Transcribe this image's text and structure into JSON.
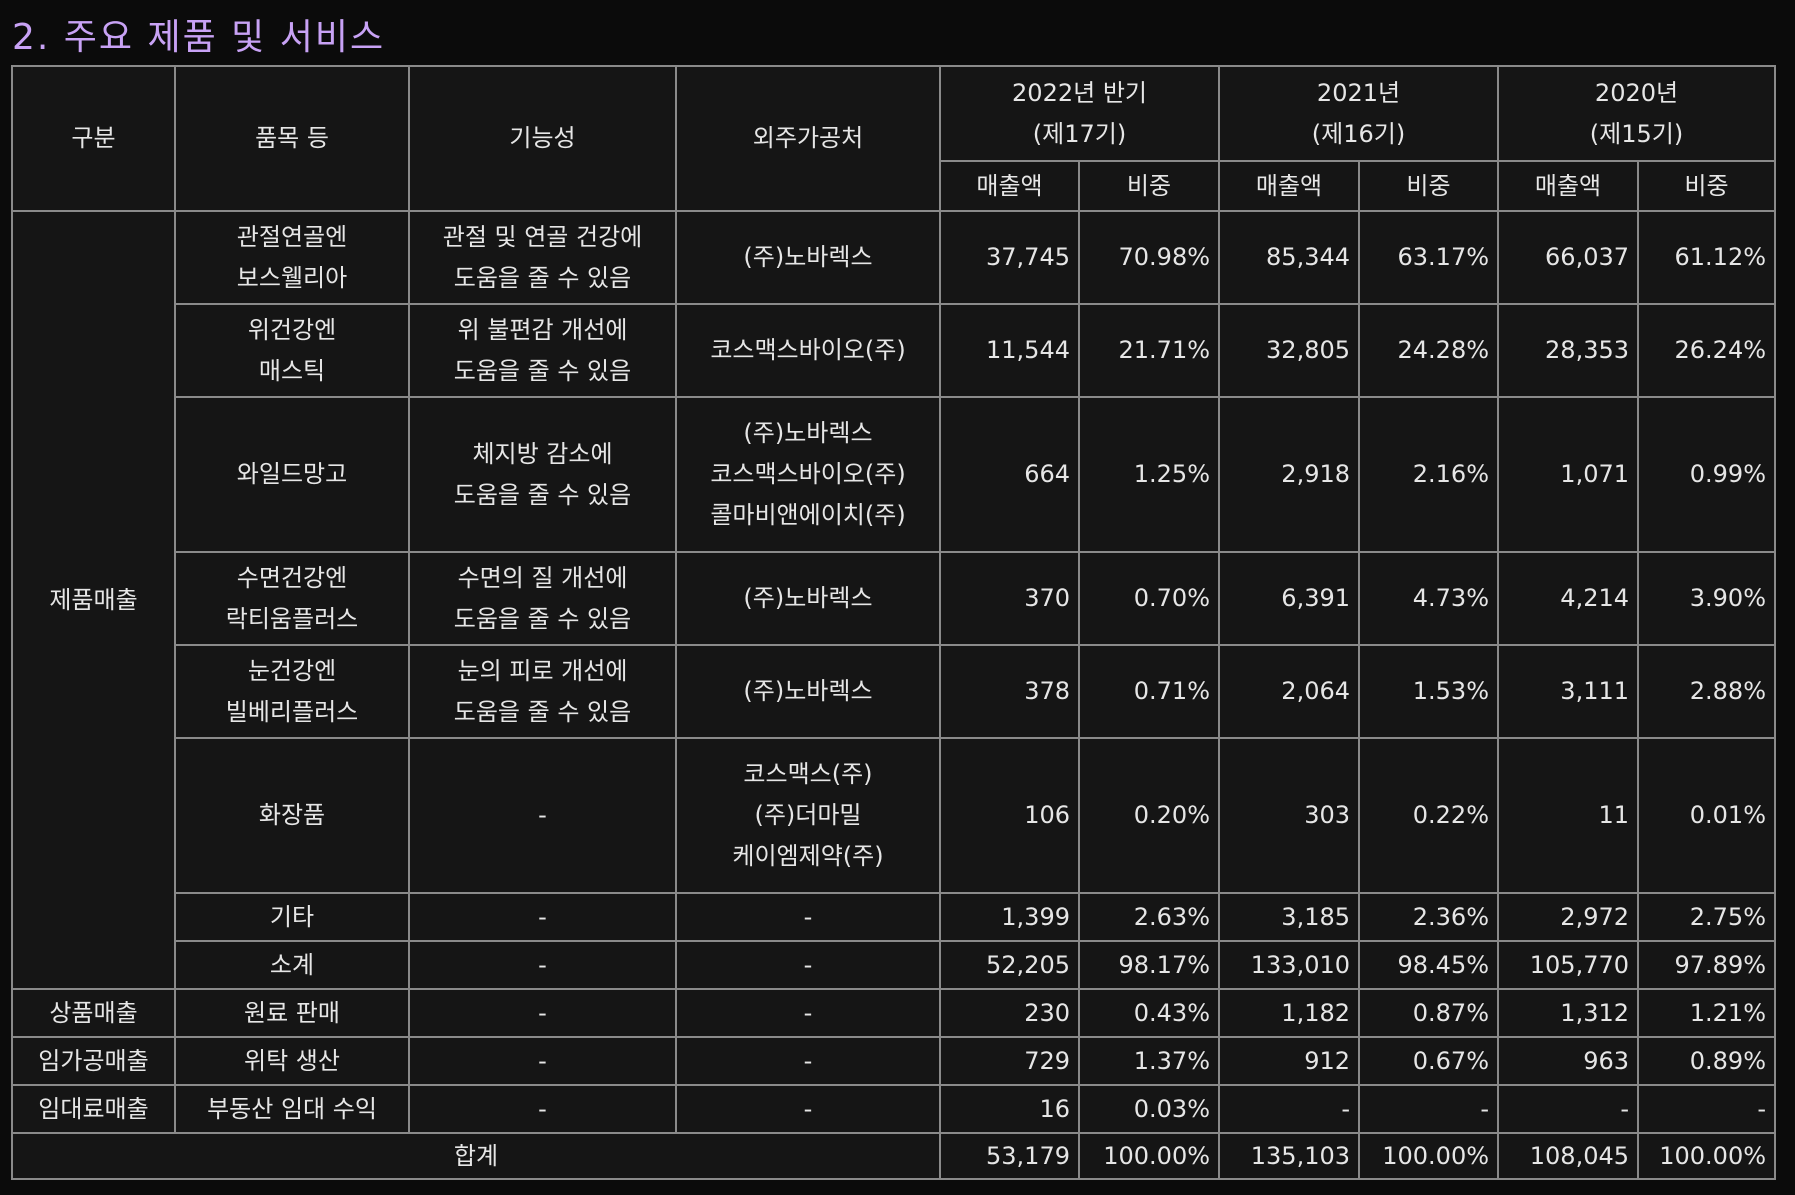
{
  "title": "2. 주요 제품 및 서비스",
  "table": {
    "header": {
      "group": "구분",
      "item": "품목 등",
      "function": "기능성",
      "vendor": "외주가공처",
      "periods": [
        {
          "label": [
            "2022년 반기",
            "(제17기)"
          ],
          "columns": [
            "매출액",
            "비중"
          ]
        },
        {
          "label": [
            "2021년",
            "(제16기)"
          ],
          "columns": [
            "매출액",
            "비중"
          ]
        },
        {
          "label": [
            "2020년",
            "(제15기)"
          ],
          "columns": [
            "매출액",
            "비중"
          ]
        }
      ]
    },
    "rows": [
      {
        "group": "제품매출",
        "item": [
          "관절연골엔",
          "보스웰리아"
        ],
        "function": [
          "관절 및 연골 건강에",
          "도움을 줄 수 있음"
        ],
        "vendor": [
          "(주)노바렉스"
        ],
        "values": [
          "37,745",
          "70.98%",
          "85,344",
          "63.17%",
          "66,037",
          "61.12%"
        ]
      },
      {
        "item": [
          "위건강엔",
          "매스틱"
        ],
        "function": [
          "위 불편감 개선에",
          "도움을 줄 수 있음"
        ],
        "vendor": [
          "코스맥스바이오(주)"
        ],
        "values": [
          "11,544",
          "21.71%",
          "32,805",
          "24.28%",
          "28,353",
          "26.24%"
        ]
      },
      {
        "item": [
          "와일드망고"
        ],
        "function": [
          "체지방 감소에",
          "도움을 줄 수 있음"
        ],
        "vendor": [
          "(주)노바렉스",
          "코스맥스바이오(주)",
          "콜마비앤에이치(주)"
        ],
        "values": [
          "664",
          "1.25%",
          "2,918",
          "2.16%",
          "1,071",
          "0.99%"
        ]
      },
      {
        "item": [
          "수면건강엔",
          "락티움플러스"
        ],
        "function": [
          "수면의 질 개선에",
          "도움을 줄 수 있음"
        ],
        "vendor": [
          "(주)노바렉스"
        ],
        "values": [
          "370",
          "0.70%",
          "6,391",
          "4.73%",
          "4,214",
          "3.90%"
        ]
      },
      {
        "item": [
          "눈건강엔",
          "빌베리플러스"
        ],
        "function": [
          "눈의 피로 개선에",
          "도움을 줄 수 있음"
        ],
        "vendor": [
          "(주)노바렉스"
        ],
        "values": [
          "378",
          "0.71%",
          "2,064",
          "1.53%",
          "3,111",
          "2.88%"
        ]
      },
      {
        "item": [
          "화장품"
        ],
        "function": [
          "-"
        ],
        "vendor": [
          "코스맥스(주)",
          "(주)더마밀",
          "케이엠제약(주)"
        ],
        "values": [
          "106",
          "0.20%",
          "303",
          "0.22%",
          "11",
          "0.01%"
        ]
      },
      {
        "item": [
          "기타"
        ],
        "function": [
          "-"
        ],
        "vendor": [
          "-"
        ],
        "values": [
          "1,399",
          "2.63%",
          "3,185",
          "2.36%",
          "2,972",
          "2.75%"
        ]
      },
      {
        "item": [
          "소계"
        ],
        "function": [
          "-"
        ],
        "vendor": [
          "-"
        ],
        "values": [
          "52,205",
          "98.17%",
          "133,010",
          "98.45%",
          "105,770",
          "97.89%"
        ]
      },
      {
        "group": "상품매출",
        "item": [
          "원료 판매"
        ],
        "function": [
          "-"
        ],
        "vendor": [
          "-"
        ],
        "values": [
          "230",
          "0.43%",
          "1,182",
          "0.87%",
          "1,312",
          "1.21%"
        ]
      },
      {
        "group": "임가공매출",
        "item": [
          "위탁 생산"
        ],
        "function": [
          "-"
        ],
        "vendor": [
          "-"
        ],
        "values": [
          "729",
          "1.37%",
          "912",
          "0.67%",
          "963",
          "0.89%"
        ]
      },
      {
        "group": "임대료매출",
        "item": [
          "부동산 임대 수익"
        ],
        "function": [
          "-"
        ],
        "vendor": [
          "-"
        ],
        "values": [
          "16",
          "0.03%",
          "-",
          "-",
          "-",
          "-"
        ]
      }
    ],
    "total": {
      "label": "합계",
      "values": [
        "53,179",
        "100.00%",
        "135,103",
        "100.00%",
        "108,045",
        "100.00%"
      ]
    }
  }
}
